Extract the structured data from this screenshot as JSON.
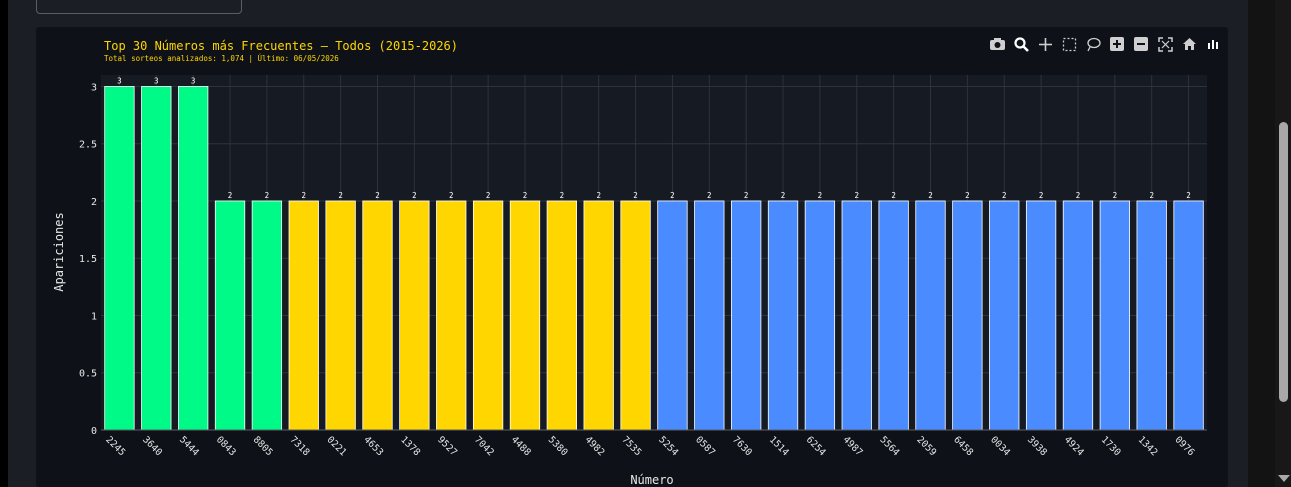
{
  "chart_data": {
    "type": "bar",
    "title": "Top 30 Números más Frecuentes — Todos (2015-2026)",
    "subtitle": "Total sorteos analizados: 1,074 | Último: 06/05/2026",
    "xlabel": "Número",
    "ylabel": "Apariciones",
    "ylim": [
      0,
      3.1
    ],
    "yticks": [
      "0",
      "0.5",
      "1",
      "1.5",
      "2",
      "2.5",
      "3"
    ],
    "ytick_values": [
      0,
      0.5,
      1,
      1.5,
      2,
      2.5,
      3
    ],
    "categories": [
      "2245",
      "3640",
      "5444",
      "0843",
      "8805",
      "7318",
      "0221",
      "4653",
      "1378",
      "9527",
      "7042",
      "4488",
      "5380",
      "4982",
      "7535",
      "5254",
      "0587",
      "7630",
      "1514",
      "6254",
      "4987",
      "5564",
      "2059",
      "6458",
      "0034",
      "3938",
      "4924",
      "1730",
      "1342",
      "0976"
    ],
    "values": [
      3,
      3,
      3,
      2,
      2,
      2,
      2,
      2,
      2,
      2,
      2,
      2,
      2,
      2,
      2,
      2,
      2,
      2,
      2,
      2,
      2,
      2,
      2,
      2,
      2,
      2,
      2,
      2,
      2,
      2
    ],
    "data_labels": [
      "3",
      "3",
      "3",
      "2",
      "2",
      "2",
      "2",
      "2",
      "2",
      "2",
      "2",
      "2",
      "2",
      "2",
      "2",
      "2",
      "2",
      "2",
      "2",
      "2",
      "2",
      "2",
      "2",
      "2",
      "2",
      "2",
      "2",
      "2",
      "2",
      "2"
    ],
    "bar_colors": [
      "#00fa87",
      "#00fa87",
      "#00fa87",
      "#00fa87",
      "#00fa87",
      "#ffd600",
      "#ffd600",
      "#ffd600",
      "#ffd600",
      "#ffd600",
      "#ffd600",
      "#ffd600",
      "#ffd600",
      "#ffd600",
      "#ffd600",
      "#4a8cff",
      "#4a8cff",
      "#4a8cff",
      "#4a8cff",
      "#4a8cff",
      "#4a8cff",
      "#4a8cff",
      "#4a8cff",
      "#4a8cff",
      "#4a8cff",
      "#4a8cff",
      "#4a8cff",
      "#4a8cff",
      "#4a8cff",
      "#4a8cff"
    ],
    "grid": true,
    "legend": "none"
  },
  "colors": {
    "title": "#ffd600",
    "axis_text": "#e8e8e8",
    "gridline": "#2e323d",
    "plot_bg": "#161a22",
    "paper_bg": "#0e1117"
  },
  "modebar": {
    "buttons": [
      {
        "icon": "camera-icon"
      },
      {
        "icon": "zoom-icon"
      },
      {
        "icon": "pan-icon"
      },
      {
        "icon": "box-select-icon"
      },
      {
        "icon": "lasso-select-icon"
      },
      {
        "icon": "zoom-in-icon"
      },
      {
        "icon": "zoom-out-icon"
      },
      {
        "icon": "autoscale-icon"
      },
      {
        "icon": "reset-axes-icon"
      },
      {
        "icon": "plotly-logo-icon"
      }
    ]
  }
}
